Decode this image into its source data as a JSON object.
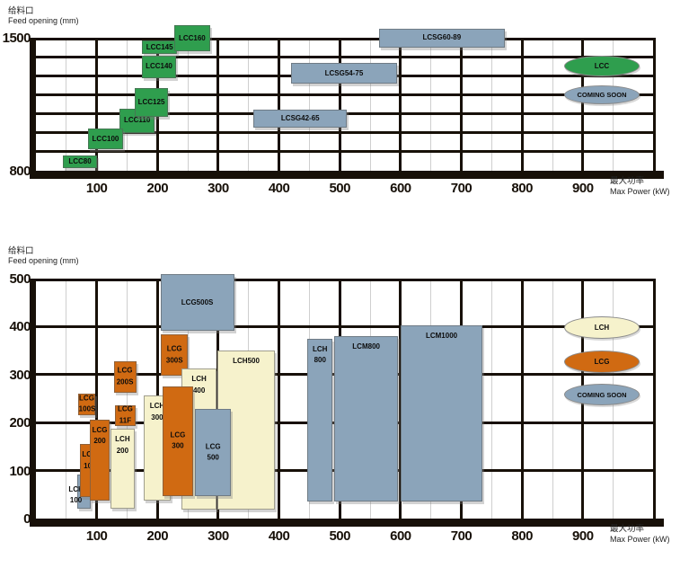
{
  "colors": {
    "green": "#2f9e4e",
    "blue": "#8ba4ba",
    "orange": "#d06a12",
    "cream": "#f6f2cc",
    "grid_thick": "#171008",
    "grid_thin": "#cfcfcf",
    "text": "#111111"
  },
  "chart_data": {
    "type": "range-box",
    "description": "Two crusher model selection charts: rectangles show each model's Max Power (kW) range on x and Feed opening (mm) range on y.",
    "charts": [
      {
        "y_axis_title_zh": "给料口",
        "y_axis_title_en": "Feed opening (mm)",
        "x_axis_title_zh": "最大功率",
        "x_axis_title_en": "Max Power (kW)",
        "x_range": [
          0,
          1020
        ],
        "y_range": [
          800,
          1500
        ],
        "x_ticks": [
          100,
          200,
          300,
          400,
          500,
          600,
          700,
          800,
          900
        ],
        "y_ticks": [
          1500,
          800
        ],
        "grid": "on",
        "boxes": [
          {
            "label": "LCC80",
            "color": "green",
            "x_kw": [
              44,
              101
            ],
            "y_mm": [
              814,
              880
            ],
            "label_pos": "center"
          },
          {
            "label": "LCC110",
            "color": "green",
            "x_kw": [
              138,
              195
            ],
            "y_mm": [
              1000,
              1126
            ],
            "label_pos": "center"
          },
          {
            "label": "LCC100",
            "color": "green",
            "x_kw": [
              86,
              143
            ],
            "y_mm": [
              913,
              1021
            ],
            "label_pos": "center"
          },
          {
            "label": "LCC125",
            "color": "green",
            "x_kw": [
              163,
              217
            ],
            "y_mm": [
              1084,
              1234
            ],
            "label_pos": "center"
          },
          {
            "label": "LCC140",
            "color": "green",
            "x_kw": [
              175,
              230
            ],
            "y_mm": [
              1289,
              1407
            ],
            "label_pos": "center"
          },
          {
            "label": "LCC145",
            "color": "green",
            "x_kw": [
              175,
              232
            ],
            "y_mm": [
              1414,
              1486
            ],
            "label_pos": "center"
          },
          {
            "label": "LCC160",
            "color": "green",
            "x_kw": [
              227,
              287
            ],
            "y_mm": [
              1430,
              1565
            ],
            "label_pos": "center"
          },
          {
            "label": "LCSG42-65",
            "color": "blue",
            "x_kw": [
              358,
              512
            ],
            "y_mm": [
              1028,
              1123
            ],
            "label_pos": "center"
          },
          {
            "label": "LCSG54-75",
            "color": "blue",
            "x_kw": [
              420,
              594
            ],
            "y_mm": [
              1257,
              1368
            ],
            "label_pos": "center"
          },
          {
            "label": "LCSG60-89",
            "color": "blue",
            "x_kw": [
              564,
              772
            ],
            "y_mm": [
              1447,
              1549
            ],
            "label_pos": "center"
          }
        ],
        "legend": [
          {
            "label": "LCC",
            "color": "green"
          },
          {
            "label": "COMING SOON",
            "color": "blue"
          }
        ],
        "legend_position": "inside-right"
      },
      {
        "y_axis_title_zh": "给料口",
        "y_axis_title_en": "Feed opening (mm)",
        "x_axis_title_zh": "最大功率",
        "x_axis_title_en": "Max Power (kW)",
        "x_range": [
          0,
          1020
        ],
        "y_range": [
          0,
          500
        ],
        "x_ticks": [
          100,
          200,
          300,
          400,
          500,
          600,
          700,
          800,
          900
        ],
        "y_ticks": [
          500,
          400,
          300,
          200,
          100,
          0
        ],
        "grid": "on",
        "boxes": [
          {
            "label": "LCG500S",
            "color": "blue",
            "x_kw": [
              205,
              326
            ],
            "y_mm": [
              391,
              509
            ],
            "label_pos": "center"
          },
          {
            "label": "LCG\n300S",
            "color": "orange",
            "x_kw": [
              206,
              250
            ],
            "y_mm": [
              297,
              384
            ],
            "label_pos": "center"
          },
          {
            "label": "LCH\n300",
            "color": "cream",
            "x_kw": [
              177,
              222
            ],
            "y_mm": [
              38,
              256
            ],
            "label_pos": "top"
          },
          {
            "label": "LCH500",
            "color": "cream",
            "x_kw": [
              299,
              393
            ],
            "y_mm": [
              19,
              350
            ],
            "label_pos": "top"
          },
          {
            "label": "LCH\n400",
            "color": "cream",
            "x_kw": [
              240,
              297
            ],
            "y_mm": [
              19,
              312
            ],
            "label_pos": "top"
          },
          {
            "label": "LCG\n300",
            "color": "orange",
            "x_kw": [
              208,
              259
            ],
            "y_mm": [
              47,
              275
            ],
            "label_pos": "center"
          },
          {
            "label": "LCG\n500",
            "color": "blue",
            "x_kw": [
              262,
              321
            ],
            "y_mm": [
              47,
              228
            ],
            "label_pos": "center"
          },
          {
            "label": "LCG\n100S",
            "color": "orange",
            "x_kw": [
              69,
              98
            ],
            "y_mm": [
              216,
              260
            ],
            "label_pos": "center"
          },
          {
            "label": "LCG\n200S",
            "color": "orange",
            "x_kw": [
              128,
              165
            ],
            "y_mm": [
              263,
              328
            ],
            "label_pos": "center"
          },
          {
            "label": "LCH\n100",
            "color": "blue",
            "x_kw": [
              68,
              90
            ],
            "y_mm": [
              20,
              92
            ],
            "label_pos": "out-left-bottom"
          },
          {
            "label": "LCG\n100",
            "color": "orange",
            "x_kw": [
              72,
              105
            ],
            "y_mm": [
              44,
              155
            ],
            "label_pos": "top"
          },
          {
            "label": "LCG\n200",
            "color": "orange",
            "x_kw": [
              89,
              121
            ],
            "y_mm": [
              38,
              206
            ],
            "label_pos": "top"
          },
          {
            "label": "LCG\n11F",
            "color": "orange",
            "x_kw": [
              130,
              164
            ],
            "y_mm": [
              193,
              236
            ],
            "label_pos": "center"
          },
          {
            "label": "LCH\n200",
            "color": "cream",
            "x_kw": [
              122,
              163
            ],
            "y_mm": [
              21,
              187
            ],
            "label_pos": "top"
          },
          {
            "label": "LCH\n800",
            "color": "blue",
            "x_kw": [
              447,
              488
            ],
            "y_mm": [
              36,
              375
            ],
            "label_pos": "top"
          },
          {
            "label": "LCM800",
            "color": "blue",
            "x_kw": [
              491,
              596
            ],
            "y_mm": [
              36,
              380
            ],
            "label_pos": "top"
          },
          {
            "label": "LCM1000",
            "color": "blue",
            "x_kw": [
              600,
              735
            ],
            "y_mm": [
              36,
              403
            ],
            "label_pos": "top"
          }
        ],
        "legend": [
          {
            "label": "LCH",
            "color": "cream"
          },
          {
            "label": "LCG",
            "color": "orange"
          },
          {
            "label": "COMING SOON",
            "color": "blue"
          }
        ],
        "legend_position": "inside-right"
      }
    ]
  }
}
